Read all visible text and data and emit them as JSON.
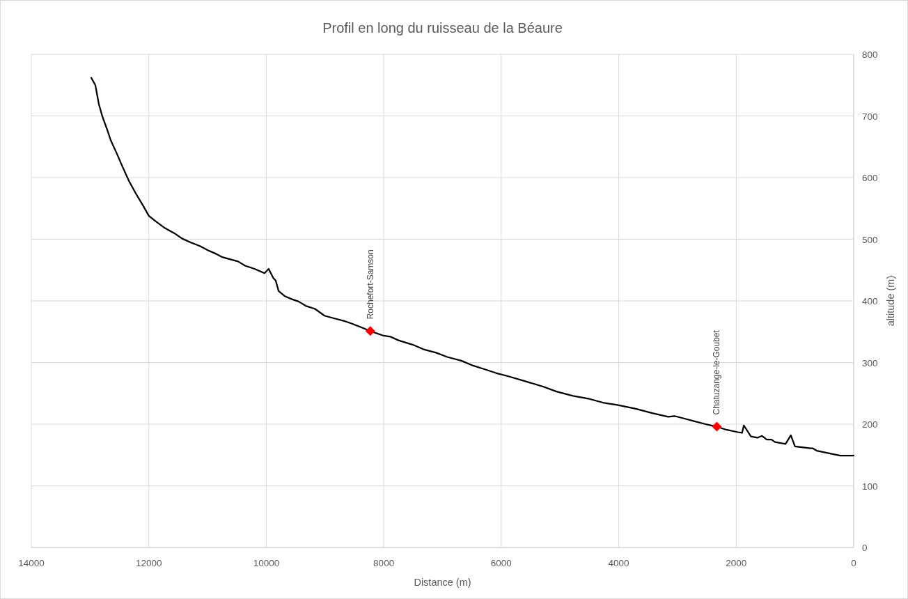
{
  "chart_data": {
    "type": "line",
    "title": "Profil en long du ruisseau de la Béaure",
    "xlabel": "Distance (m)",
    "ylabel": "altitude (m)",
    "xlim": [
      14000,
      0
    ],
    "xticks": [
      14000,
      12000,
      10000,
      8000,
      6000,
      4000,
      2000,
      0
    ],
    "ylim": [
      0,
      800
    ],
    "yticks": [
      0,
      100,
      200,
      300,
      400,
      500,
      600,
      700,
      800
    ],
    "grid": true,
    "series": [
      {
        "color": "#000000",
        "line_style": "solid",
        "marker": "none",
        "x": [
          12980,
          12910,
          12850,
          12790,
          12710,
          12650,
          12540,
          12440,
          12340,
          12220,
          12100,
          12000,
          11880,
          11740,
          11570,
          11430,
          11290,
          11130,
          10990,
          10870,
          10750,
          10600,
          10480,
          10360,
          10200,
          10030,
          9960,
          9880,
          9840,
          9790,
          9690,
          9570,
          9450,
          9330,
          9170,
          9010,
          8860,
          8660,
          8540,
          8380,
          8230,
          8020,
          7890,
          7750,
          7510,
          7310,
          7110,
          6920,
          6680,
          6480,
          6280,
          6090,
          5890,
          5600,
          5290,
          5060,
          4780,
          4500,
          4270,
          4010,
          3710,
          3430,
          3160,
          3040,
          2880,
          2720,
          2520,
          2330,
          2170,
          1970,
          1900,
          1870,
          1750,
          1640,
          1560,
          1480,
          1400,
          1340,
          1160,
          1070,
          1000,
          740,
          700,
          630,
          430,
          230,
          0
        ],
        "values": [
          762,
          750,
          719,
          699,
          678,
          661,
          638,
          616,
          595,
          574,
          555,
          538,
          529,
          519,
          510,
          501,
          495,
          489,
          482,
          477,
          471,
          467,
          464,
          457,
          452,
          445,
          452,
          437,
          433,
          416,
          408,
          403,
          399,
          392,
          387,
          376,
          372,
          367,
          363,
          357,
          351,
          344,
          342,
          336,
          329,
          321,
          316,
          309,
          303,
          295,
          289,
          283,
          278,
          270,
          261,
          253,
          246,
          241,
          235,
          231,
          225,
          218,
          212,
          213,
          209,
          205,
          200,
          196,
          191,
          187,
          186,
          198,
          180,
          178,
          181,
          175,
          175,
          171,
          168,
          182,
          164,
          161,
          161,
          157,
          153,
          149,
          149
        ]
      },
      {
        "type": "scatter",
        "color": "#ff0000",
        "marker": "diamond",
        "x": [
          8230,
          2330
        ],
        "values": [
          351,
          196
        ]
      }
    ],
    "annotations": [
      {
        "text": "Rochefort-Samson",
        "x": 8230,
        "y": 351
      },
      {
        "text": "Chatuzange-le-Goubet",
        "x": 2330,
        "y": 196
      }
    ]
  }
}
